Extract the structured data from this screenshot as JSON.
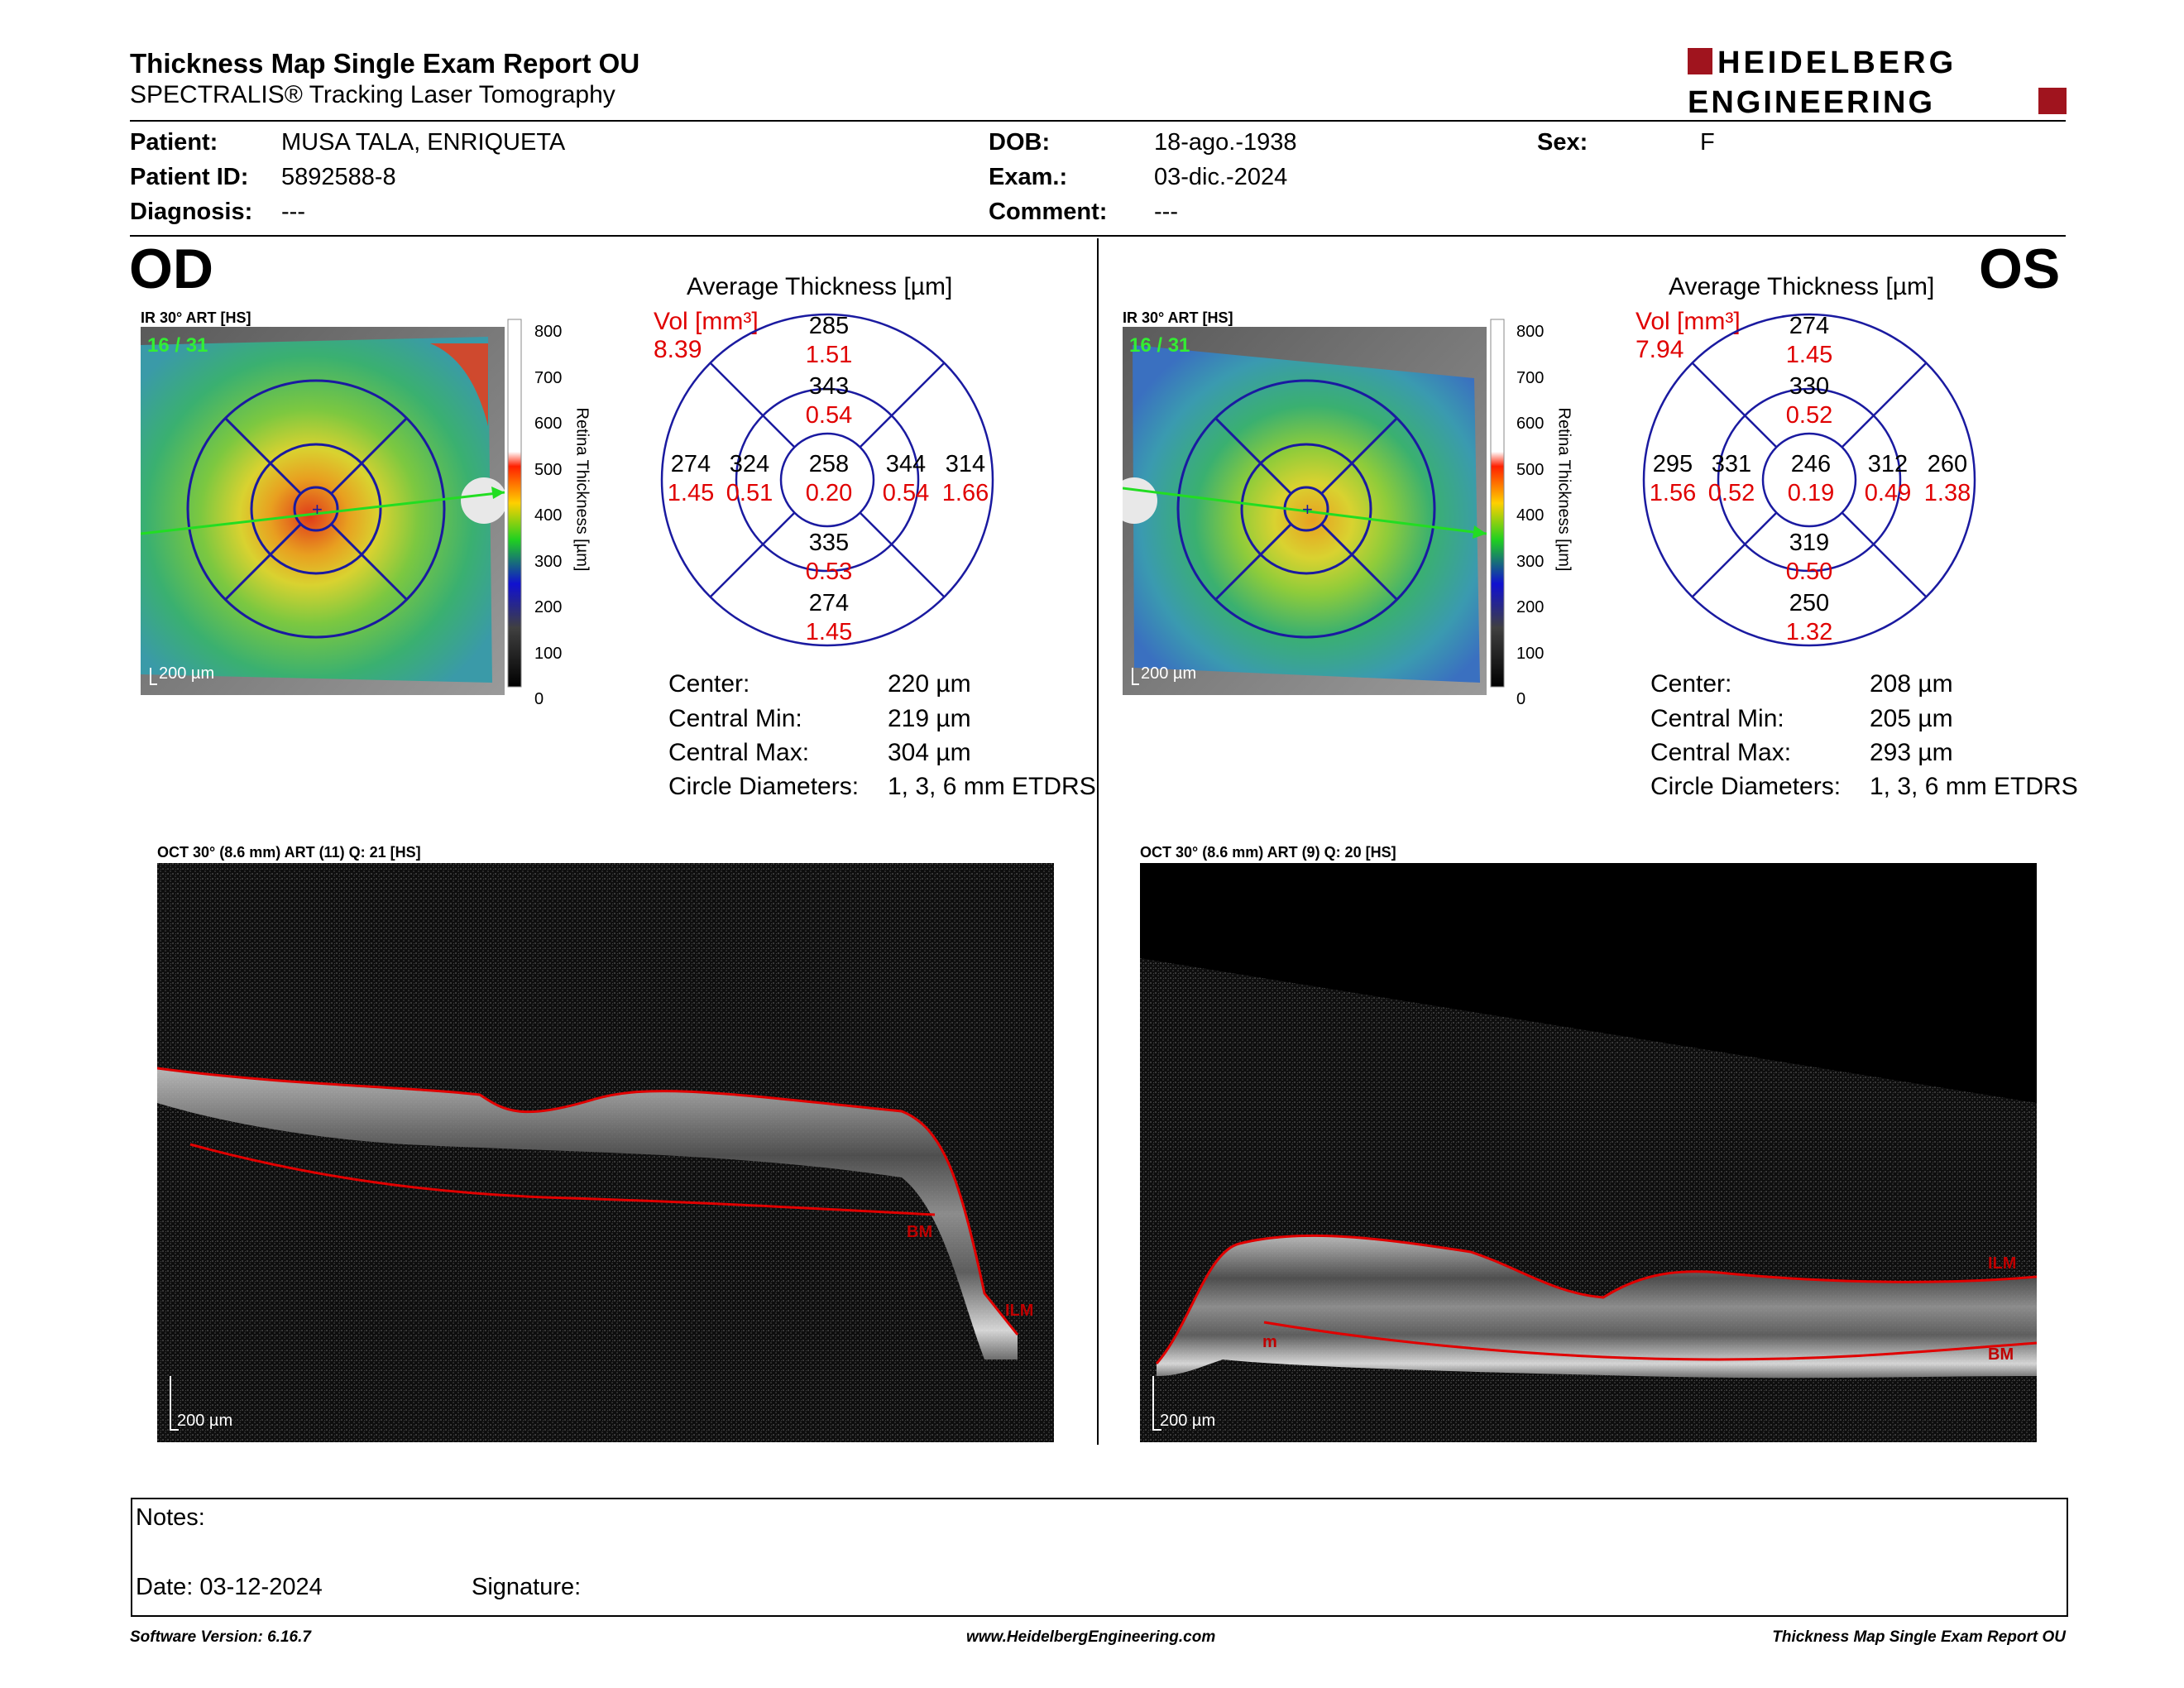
{
  "header": {
    "title": "Thickness Map Single Exam Report OU",
    "subtitle": "SPECTRALIS® Tracking Laser Tomography",
    "logo_line1": "HEIDELBERG",
    "logo_line2": "ENGINEERING"
  },
  "patient": {
    "patient_label": "Patient:",
    "patient_value": "MUSA TALA, ENRIQUETA",
    "id_label": "Patient ID:",
    "id_value": "5892588-8",
    "diagnosis_label": "Diagnosis:",
    "diagnosis_value": "---",
    "dob_label": "DOB:",
    "dob_value": "18-ago.-1938",
    "exam_label": "Exam.:",
    "exam_value": "03-dic.-2024",
    "comment_label": "Comment:",
    "comment_value": "---",
    "sex_label": "Sex:",
    "sex_value": "F"
  },
  "colors": {
    "accent_red": "#e00000",
    "grid_blue": "#1a1aa0",
    "logo_red": "#a0141e"
  },
  "scale": {
    "ticks": [
      "800",
      "700",
      "600",
      "500",
      "400",
      "300",
      "200",
      "100",
      "0"
    ],
    "label": "Retina Thickness [µm]"
  },
  "od": {
    "eye": "OD",
    "ir_label": "IR 30° ART [HS]",
    "ir_count": "16 / 31",
    "ir_scale": "200 µm",
    "avg_title": "Average Thickness [µm]",
    "vol_label": "Vol [mm³]",
    "vol_total": "8.39",
    "sectors": {
      "sup_out": [
        "285",
        "1.51"
      ],
      "sup_in": [
        "343",
        "0.54"
      ],
      "tmp_out": [
        "274",
        "1.45"
      ],
      "tmp_in": [
        "324",
        "0.51"
      ],
      "center": [
        "258",
        "0.20"
      ],
      "nas_in": [
        "344",
        "0.54"
      ],
      "nas_out": [
        "314",
        "1.66"
      ],
      "inf_in": [
        "335",
        "0.53"
      ],
      "inf_out": [
        "274",
        "1.45"
      ]
    },
    "stats": [
      [
        "Center:",
        "220 µm"
      ],
      [
        "Central Min:",
        "219 µm"
      ],
      [
        "Central Max:",
        "304 µm"
      ],
      [
        "Circle Diameters:",
        "1, 3, 6 mm ETDRS"
      ]
    ],
    "oct_label": "OCT 30° (8.6 mm) ART (11) Q: 21 [HS]",
    "oct_scale": "200 µm",
    "oct_bm": "BM",
    "oct_ilm": "ILM"
  },
  "os": {
    "eye": "OS",
    "ir_label": "IR 30° ART [HS]",
    "ir_count": "16 / 31",
    "ir_scale": "200 µm",
    "avg_title": "Average Thickness [µm]",
    "vol_label": "Vol [mm³]",
    "vol_total": "7.94",
    "sectors": {
      "sup_out": [
        "274",
        "1.45"
      ],
      "sup_in": [
        "330",
        "0.52"
      ],
      "tmp_out": [
        "295",
        "1.56"
      ],
      "tmp_in": [
        "331",
        "0.52"
      ],
      "center": [
        "246",
        "0.19"
      ],
      "nas_in": [
        "312",
        "0.49"
      ],
      "nas_out": [
        "260",
        "1.38"
      ],
      "inf_in": [
        "319",
        "0.50"
      ],
      "inf_out": [
        "250",
        "1.32"
      ]
    },
    "stats": [
      [
        "Center:",
        "208 µm"
      ],
      [
        "Central Min:",
        "205 µm"
      ],
      [
        "Central Max:",
        "293 µm"
      ],
      [
        "Circle Diameters:",
        "1, 3, 6 mm ETDRS"
      ]
    ],
    "oct_label": "OCT 30° (8.6 mm) ART (9) Q: 20 [HS]",
    "oct_scale": "200 µm",
    "oct_bm": "BM",
    "oct_ilm": "ILM",
    "oct_m": "m"
  },
  "notes": {
    "notes_label": "Notes:",
    "date_label": "Date: 03-12-2024",
    "signature_label": "Signature:"
  },
  "footer": {
    "left": "Software Version: 6.16.7",
    "center": "www.HeidelbergEngineering.com",
    "right": "Thickness Map Single Exam Report OU"
  }
}
